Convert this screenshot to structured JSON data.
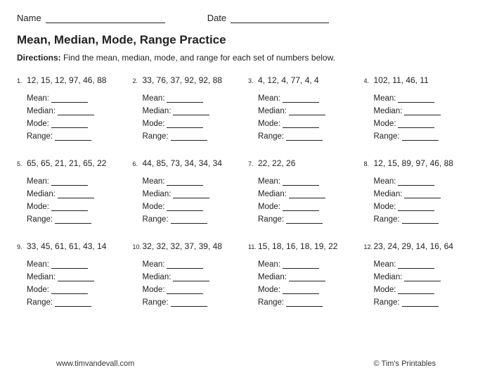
{
  "header": {
    "name_label": "Name",
    "date_label": "Date"
  },
  "title": "Mean, Median, Mode, Range Practice",
  "directions_label": "Directions:",
  "directions_text": " Find the mean, median, mode, and range for each set of numbers below.",
  "answer_labels": [
    "Mean:",
    "Median:",
    "Mode:",
    "Range:"
  ],
  "problems": [
    {
      "n": "1.",
      "numbers": "12, 15, 12, 97, 46, 88"
    },
    {
      "n": "2.",
      "numbers": "33, 76, 37, 92, 92, 88"
    },
    {
      "n": "3.",
      "numbers": "4, 12, 4, 77, 4, 4"
    },
    {
      "n": "4.",
      "numbers": "102, 11, 46, 11"
    },
    {
      "n": "5.",
      "numbers": "65, 65, 21, 21, 65, 22"
    },
    {
      "n": "6.",
      "numbers": "44, 85, 73, 34, 34, 34"
    },
    {
      "n": "7.",
      "numbers": "22, 22, 26"
    },
    {
      "n": "8.",
      "numbers": "12, 15, 89, 97, 46, 88"
    },
    {
      "n": "9.",
      "numbers": "33, 45, 61, 61, 43, 14"
    },
    {
      "n": "10.",
      "numbers": "32, 32, 32, 37, 39, 48"
    },
    {
      "n": "11.",
      "numbers": "15, 18, 16, 18, 19, 22"
    },
    {
      "n": "12.",
      "numbers": "23, 24, 29, 14, 16, 64"
    }
  ],
  "footer": {
    "url": "www.timvandevall.com",
    "credit": "© Tim's Printables"
  },
  "style": {
    "background_color": "#ffffff",
    "text_color": "#222222",
    "line_color": "#222222",
    "title_fontsize": 17,
    "body_fontsize": 12,
    "small_fontsize": 11,
    "font_family": "Arial"
  }
}
